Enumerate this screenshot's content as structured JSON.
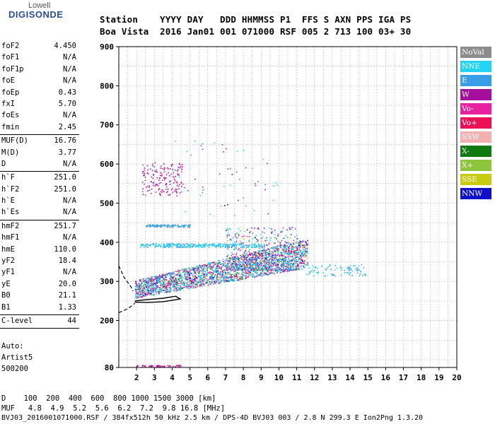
{
  "logo": {
    "line1": "Lowell",
    "line2": "DIGISONDE"
  },
  "header": {
    "row1": "Station    YYYY DAY   DDD HHMMSS P1  FFS S AXN PPS IGA PS",
    "row2": "Boa Vista  2016 Jan01 001 071000 RSF 005 2 713 100 03+ 30"
  },
  "params": [
    {
      "name": "foF2",
      "value": "4.450"
    },
    {
      "name": "foF1",
      "value": "N/A"
    },
    {
      "name": "foF1p",
      "value": "N/A"
    },
    {
      "name": "foE",
      "value": "N/A"
    },
    {
      "name": "foEp",
      "value": "0.43"
    },
    {
      "name": "fxI",
      "value": "5.70"
    },
    {
      "name": "foEs",
      "value": "N/A"
    },
    {
      "name": "fmin",
      "value": "2.45"
    },
    {
      "sep": true
    },
    {
      "name": "MUF(D)",
      "value": "16.76"
    },
    {
      "name": "M(D)",
      "value": "3.77"
    },
    {
      "name": "D",
      "value": "N/A"
    },
    {
      "sep": true
    },
    {
      "name": "h`F",
      "value": "251.0"
    },
    {
      "name": "h`F2",
      "value": "251.0"
    },
    {
      "name": "h`E",
      "value": "N/A"
    },
    {
      "name": "h`Es",
      "value": "N/A"
    },
    {
      "sep": true
    },
    {
      "name": "hmF2",
      "value": "251.7"
    },
    {
      "name": "hmF1",
      "value": "N/A"
    },
    {
      "name": "hmE",
      "value": "110.0"
    },
    {
      "name": "yF2",
      "value": "18.4"
    },
    {
      "name": "yF1",
      "value": "N/A"
    },
    {
      "name": "yE",
      "value": "20.0"
    },
    {
      "name": "B0",
      "value": "21.1"
    },
    {
      "name": "B1",
      "value": "1.33"
    },
    {
      "sep": true
    },
    {
      "name": "C-level",
      "value": "44"
    },
    {
      "sep": true
    }
  ],
  "auto": {
    "line1": "Auto:",
    "line2": "Artist5",
    "line3": "500200"
  },
  "legend": [
    {
      "label": "NoVal",
      "color": "#8c8c8c"
    },
    {
      "label": "NNE",
      "color": "#23d4f2"
    },
    {
      "label": "E",
      "color": "#3a9ee6"
    },
    {
      "label": "W",
      "color": "#a4109c"
    },
    {
      "label": "Vo-",
      "color": "#e8229e"
    },
    {
      "label": "Vo+",
      "color": "#ee1055"
    },
    {
      "label": "SSW",
      "color": "#f2b0b0"
    },
    {
      "label": "X-",
      "color": "#107a10"
    },
    {
      "label": "X+",
      "color": "#8cc43c"
    },
    {
      "label": "SSE",
      "color": "#c8cc10"
    },
    {
      "label": "NNW",
      "color": "#1010c8"
    }
  ],
  "chart_data": {
    "type": "scatter",
    "xlim": [
      1,
      20
    ],
    "ylim": [
      80,
      900
    ],
    "x_ticks": [
      2,
      3,
      4,
      5,
      6,
      7,
      8,
      9,
      10,
      11,
      12,
      13,
      14,
      15,
      16,
      17,
      18,
      19,
      20
    ],
    "y_ticks": [
      80,
      200,
      300,
      400,
      500,
      600,
      700,
      800,
      900
    ],
    "grid": true,
    "trace_dashed": [
      [
        1,
        340
      ],
      [
        1.3,
        310
      ],
      [
        1.7,
        285
      ],
      [
        1.8,
        275
      ]
    ],
    "trace_dashed_lower": [
      [
        1,
        220
      ],
      [
        1.5,
        230
      ],
      [
        1.8,
        240
      ],
      [
        1.9,
        244
      ]
    ],
    "trace_solid": [
      [
        1.9,
        250
      ],
      [
        2.5,
        253
      ],
      [
        3.5,
        257
      ],
      [
        4.2,
        262
      ],
      [
        4.45,
        255
      ],
      [
        3.5,
        248
      ],
      [
        2.6,
        246
      ],
      [
        1.9,
        247
      ]
    ]
  },
  "bottom": {
    "d_row": "D    100  200  400  600  800 1000 1500 3000 [km]",
    "muf_row": "MUF   4.8  4.9  5.2  5.6  6.2  7.2  9.8 16.8 [MHz]",
    "footer": "BVJ03_2016001071000.RSF / 384fx512h 50 kHz 2.5 km / DPS-4D BVJ03 003 / 2.8 N 299.3 E Ion2Png 1.3.20"
  }
}
